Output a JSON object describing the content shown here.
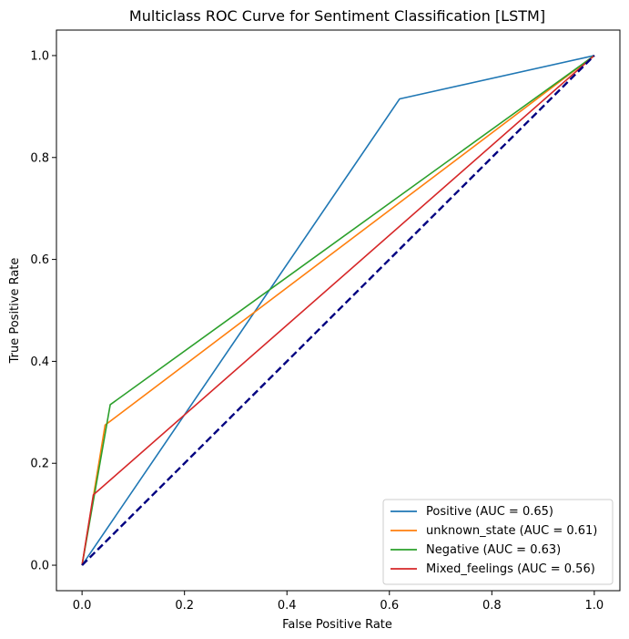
{
  "chart_data": {
    "type": "line",
    "title": "Multiclass ROC Curve for Sentiment Classification [LSTM]",
    "xlabel": "False Positive Rate",
    "ylabel": "True Positive Rate",
    "xlim": [
      -0.05,
      1.05
    ],
    "ylim": [
      -0.05,
      1.05
    ],
    "xticks": [
      0.0,
      0.2,
      0.4,
      0.6,
      0.8,
      1.0
    ],
    "yticks": [
      0.0,
      0.2,
      0.4,
      0.6,
      0.8,
      1.0
    ],
    "xtick_labels": [
      "0.0",
      "0.2",
      "0.4",
      "0.6",
      "0.8",
      "1.0"
    ],
    "ytick_labels": [
      "0.0",
      "0.2",
      "0.4",
      "0.6",
      "0.8",
      "1.0"
    ],
    "grid": false,
    "legend_position": "bottom-right",
    "series": [
      {
        "name": "Positive (AUC = 0.65)",
        "color": "#1f77b4",
        "x": [
          0.0,
          0.62,
          1.0
        ],
        "y": [
          0.0,
          0.915,
          1.0
        ]
      },
      {
        "name": "unknown_state (AUC = 0.61)",
        "color": "#ff7f0e",
        "x": [
          0.0,
          0.045,
          1.0
        ],
        "y": [
          0.0,
          0.275,
          1.0
        ]
      },
      {
        "name": "Negative (AUC = 0.63)",
        "color": "#2ca02c",
        "x": [
          0.0,
          0.055,
          1.0
        ],
        "y": [
          0.0,
          0.315,
          1.0
        ]
      },
      {
        "name": "Mixed_feelings (AUC = 0.56)",
        "color": "#d62728",
        "x": [
          0.0,
          0.022,
          1.0
        ],
        "y": [
          0.0,
          0.138,
          1.0
        ]
      }
    ],
    "reference_line": {
      "color": "#000080",
      "style": "dashed",
      "x": [
        0.0,
        1.0
      ],
      "y": [
        0.0,
        1.0
      ]
    }
  }
}
